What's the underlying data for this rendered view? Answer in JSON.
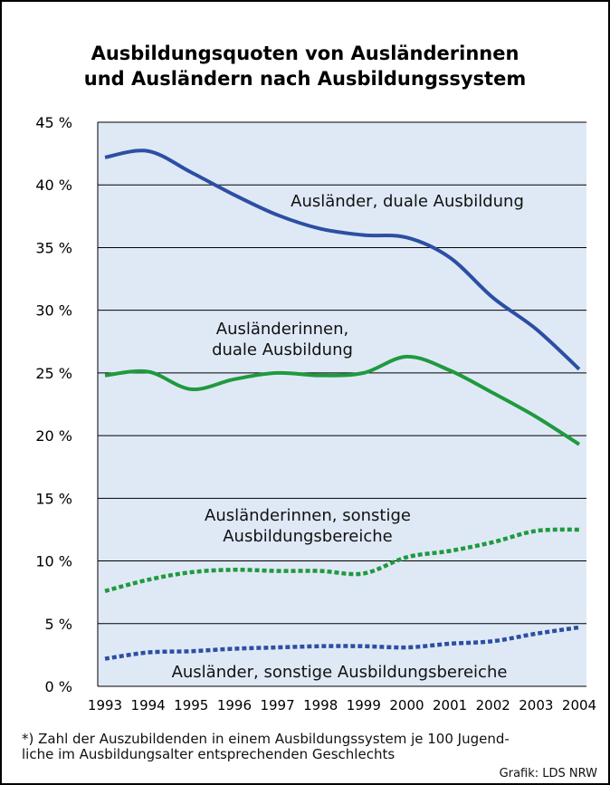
{
  "chart_data": {
    "type": "line",
    "title_lines": [
      "Ausbildungsquoten von Ausländerinnen",
      "und Ausländern nach Ausbildungssystem"
    ],
    "categories": [
      "1993",
      "1994",
      "1995",
      "1996",
      "1997",
      "1998",
      "1999",
      "2000",
      "2001",
      "2002",
      "2003",
      "2004"
    ],
    "series": [
      {
        "name": "Ausländer, duale Ausbildung",
        "color": "#2c4fa3",
        "dashed": false,
        "values": [
          42.2,
          42.7,
          41.0,
          39.2,
          37.6,
          36.5,
          36.0,
          35.8,
          34.2,
          31.0,
          28.5,
          25.3
        ]
      },
      {
        "name": "Ausländerinnen, duale Ausbildung",
        "color": "#1f9a3e",
        "dashed": false,
        "values": [
          24.8,
          25.1,
          23.7,
          24.5,
          25.0,
          24.8,
          25.0,
          26.3,
          25.2,
          23.4,
          21.5,
          19.3
        ]
      },
      {
        "name": "Ausländerinnen, sonstige Ausbildungsbereiche",
        "color": "#1f9a3e",
        "dashed": true,
        "values": [
          7.6,
          8.5,
          9.1,
          9.3,
          9.2,
          9.2,
          9.0,
          10.3,
          10.8,
          11.5,
          12.4,
          12.5
        ]
      },
      {
        "name": "Ausländer, sonstige Ausbildungsbereiche",
        "color": "#2c4fa3",
        "dashed": true,
        "values": [
          2.2,
          2.7,
          2.8,
          3.0,
          3.1,
          3.2,
          3.2,
          3.1,
          3.4,
          3.6,
          4.2,
          4.7
        ]
      }
    ],
    "ylim": [
      0,
      45
    ],
    "yticks": [
      {
        "value": 0,
        "label": "0 %"
      },
      {
        "value": 5,
        "label": "5 %"
      },
      {
        "value": 10,
        "label": "10 %"
      },
      {
        "value": 15,
        "label": "15 %"
      },
      {
        "value": 20,
        "label": "20 %"
      },
      {
        "value": 25,
        "label": "25 %"
      },
      {
        "value": 30,
        "label": "30 %"
      },
      {
        "value": 35,
        "label": "35 %"
      },
      {
        "value": 40,
        "label": "40 %"
      },
      {
        "value": 45,
        "label": "45 %"
      }
    ],
    "grid": true,
    "footnote_lines": [
      "*) Zahl der Auszubildenden in einem Ausbildungssystem je 100 Jugend-",
      "liche im Ausbildungsalter entsprechenden Geschlechts"
    ],
    "source": "Grafik: LDS NRW"
  }
}
